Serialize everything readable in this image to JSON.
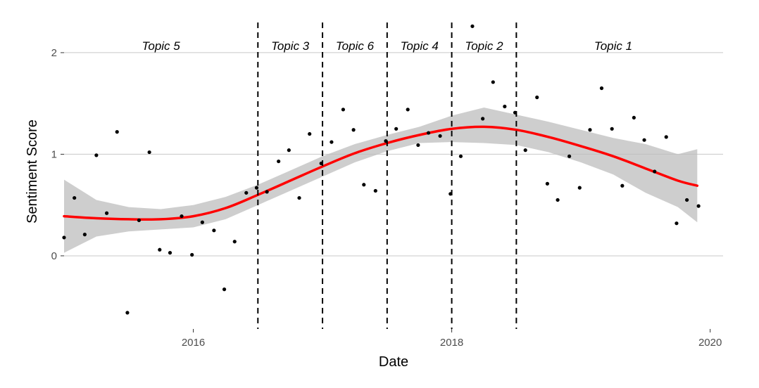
{
  "chart_data": {
    "type": "scatter",
    "xlabel": "Date",
    "ylabel": "Sentiment Score",
    "xlim": [
      2015.0,
      2020.1
    ],
    "ylim": [
      -0.72,
      2.38
    ],
    "x_ticks": [
      {
        "value": 2016,
        "label": "2016"
      },
      {
        "value": 2018,
        "label": "2018"
      },
      {
        "value": 2020,
        "label": "2020"
      }
    ],
    "y_ticks": [
      {
        "value": 0,
        "label": "0"
      },
      {
        "value": 1,
        "label": "1"
      },
      {
        "value": 2,
        "label": "2"
      }
    ],
    "grid": "horizontal major",
    "points": [
      [
        2015.0,
        0.18
      ],
      [
        2015.08,
        0.57
      ],
      [
        2015.16,
        0.21
      ],
      [
        2015.25,
        0.99
      ],
      [
        2015.33,
        0.42
      ],
      [
        2015.41,
        1.22
      ],
      [
        2015.49,
        -0.56
      ],
      [
        2015.58,
        0.35
      ],
      [
        2015.66,
        1.02
      ],
      [
        2015.74,
        0.06
      ],
      [
        2015.82,
        0.03
      ],
      [
        2015.91,
        0.39
      ],
      [
        2015.99,
        0.01
      ],
      [
        2016.07,
        0.33
      ],
      [
        2016.16,
        0.25
      ],
      [
        2016.24,
        -0.33
      ],
      [
        2016.32,
        0.14
      ],
      [
        2016.41,
        0.62
      ],
      [
        2016.49,
        0.67
      ],
      [
        2016.57,
        0.63
      ],
      [
        2016.66,
        0.93
      ],
      [
        2016.74,
        1.04
      ],
      [
        2016.82,
        0.57
      ],
      [
        2016.9,
        1.2
      ],
      [
        2016.99,
        0.91
      ],
      [
        2017.07,
        1.12
      ],
      [
        2017.16,
        1.44
      ],
      [
        2017.24,
        1.24
      ],
      [
        2017.32,
        0.7
      ],
      [
        2017.41,
        0.64
      ],
      [
        2017.49,
        1.13
      ],
      [
        2017.57,
        1.25
      ],
      [
        2017.66,
        1.44
      ],
      [
        2017.74,
        1.09
      ],
      [
        2017.82,
        1.21
      ],
      [
        2017.91,
        1.18
      ],
      [
        2017.99,
        0.61
      ],
      [
        2018.07,
        0.98
      ],
      [
        2018.16,
        2.26
      ],
      [
        2018.24,
        1.35
      ],
      [
        2018.32,
        1.71
      ],
      [
        2018.41,
        1.47
      ],
      [
        2018.49,
        1.41
      ],
      [
        2018.57,
        1.04
      ],
      [
        2018.66,
        1.56
      ],
      [
        2018.74,
        0.71
      ],
      [
        2018.82,
        0.55
      ],
      [
        2018.91,
        0.98
      ],
      [
        2018.99,
        0.67
      ],
      [
        2019.07,
        1.24
      ],
      [
        2019.16,
        1.65
      ],
      [
        2019.24,
        1.25
      ],
      [
        2019.32,
        0.69
      ],
      [
        2019.41,
        1.36
      ],
      [
        2019.49,
        1.14
      ],
      [
        2019.57,
        0.83
      ],
      [
        2019.66,
        1.17
      ],
      [
        2019.74,
        0.32
      ],
      [
        2019.82,
        0.55
      ],
      [
        2019.91,
        0.49
      ]
    ],
    "smooth": {
      "x": [
        2015.0,
        2015.25,
        2015.5,
        2015.75,
        2016.0,
        2016.25,
        2016.5,
        2016.75,
        2017.0,
        2017.25,
        2017.5,
        2017.75,
        2018.0,
        2018.25,
        2018.5,
        2018.75,
        2019.0,
        2019.25,
        2019.5,
        2019.75,
        2019.9
      ],
      "y": [
        0.39,
        0.37,
        0.36,
        0.36,
        0.39,
        0.47,
        0.6,
        0.74,
        0.88,
        1.01,
        1.11,
        1.19,
        1.25,
        1.27,
        1.24,
        1.17,
        1.08,
        0.98,
        0.86,
        0.74,
        0.69
      ],
      "lo": [
        0.03,
        0.19,
        0.24,
        0.26,
        0.28,
        0.36,
        0.5,
        0.64,
        0.78,
        0.92,
        1.03,
        1.11,
        1.12,
        1.11,
        1.09,
        1.02,
        0.92,
        0.8,
        0.62,
        0.48,
        0.33
      ],
      "hi": [
        0.75,
        0.55,
        0.48,
        0.46,
        0.5,
        0.58,
        0.7,
        0.84,
        0.98,
        1.1,
        1.19,
        1.27,
        1.38,
        1.46,
        1.39,
        1.32,
        1.24,
        1.16,
        1.1,
        1.0,
        1.05
      ]
    },
    "dividers": [
      2016.5,
      2017.0,
      2017.5,
      2018.0,
      2018.5
    ],
    "topics": [
      {
        "label": "Topic 5",
        "x": 2015.75
      },
      {
        "label": "Topic 3",
        "x": 2016.75
      },
      {
        "label": "Topic 6",
        "x": 2017.25
      },
      {
        "label": "Topic 4",
        "x": 2017.75
      },
      {
        "label": "Topic 2",
        "x": 2018.25
      },
      {
        "label": "Topic 1",
        "x": 2019.25
      }
    ],
    "colors": {
      "line": "#ff0000",
      "band": "#bebebe",
      "point": "#000000",
      "grid": "#c8c8c8",
      "divider": "#000000"
    }
  }
}
